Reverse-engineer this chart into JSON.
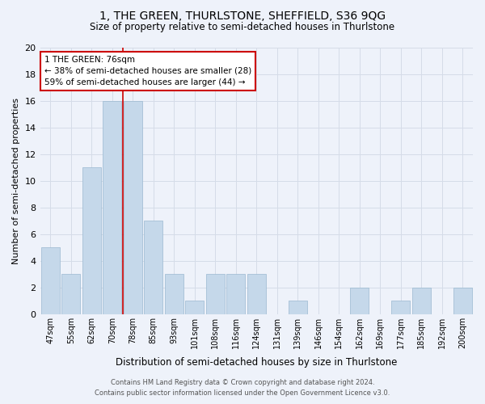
{
  "title": "1, THE GREEN, THURLSTONE, SHEFFIELD, S36 9QG",
  "subtitle": "Size of property relative to semi-detached houses in Thurlstone",
  "xlabel": "Distribution of semi-detached houses by size in Thurlstone",
  "ylabel": "Number of semi-detached properties",
  "categories": [
    "47sqm",
    "55sqm",
    "62sqm",
    "70sqm",
    "78sqm",
    "85sqm",
    "93sqm",
    "101sqm",
    "108sqm",
    "116sqm",
    "124sqm",
    "131sqm",
    "139sqm",
    "146sqm",
    "154sqm",
    "162sqm",
    "169sqm",
    "177sqm",
    "185sqm",
    "192sqm",
    "200sqm"
  ],
  "values": [
    5,
    3,
    11,
    16,
    16,
    7,
    3,
    1,
    3,
    3,
    3,
    0,
    1,
    0,
    0,
    2,
    0,
    1,
    2,
    0,
    2
  ],
  "bar_color": "#c5d8ea",
  "bar_edge_color": "#9ab8d0",
  "highlight_line_index": 3.5,
  "annotation_text": "1 THE GREEN: 76sqm\n← 38% of semi-detached houses are smaller (28)\n59% of semi-detached houses are larger (44) →",
  "annotation_box_facecolor": "#ffffff",
  "annotation_box_edgecolor": "#cc0000",
  "ylim": [
    0,
    20
  ],
  "yticks": [
    0,
    2,
    4,
    6,
    8,
    10,
    12,
    14,
    16,
    18,
    20
  ],
  "grid_color": "#d5dce8",
  "background_color": "#eef2fa",
  "footer1": "Contains HM Land Registry data © Crown copyright and database right 2024.",
  "footer2": "Contains public sector information licensed under the Open Government Licence v3.0."
}
